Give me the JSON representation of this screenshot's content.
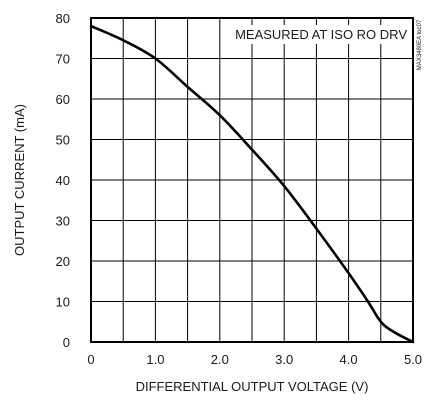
{
  "chart_data": {
    "type": "line",
    "title": "",
    "xlabel": "DIFFERENTIAL OUTPUT VOLTAGE (V)",
    "ylabel": "OUTPUT CURRENT (mA)",
    "annotation": "MEASURED AT ISO RO DRV",
    "side_note": "MAX3480EA toc07",
    "xlim": [
      0,
      5.0
    ],
    "ylim": [
      0,
      80
    ],
    "x_ticks": [
      0,
      1.0,
      2.0,
      3.0,
      4.0,
      5.0
    ],
    "x_tick_labels": [
      "0",
      "1.0",
      "2.0",
      "3.0",
      "4.0",
      "5.0"
    ],
    "y_ticks": [
      0,
      10,
      20,
      30,
      40,
      50,
      60,
      70,
      80
    ],
    "y_tick_labels": [
      "0",
      "10",
      "20",
      "30",
      "40",
      "50",
      "60",
      "70",
      "80"
    ],
    "grid": true,
    "series": [
      {
        "name": "",
        "x": [
          0,
          0.5,
          1.0,
          1.5,
          2.0,
          2.5,
          3.0,
          3.5,
          4.0,
          4.3,
          4.5,
          4.7,
          5.0
        ],
        "y": [
          78,
          74.5,
          70,
          63,
          56,
          47.5,
          38.5,
          28,
          17,
          10,
          5,
          2.5,
          0
        ]
      }
    ],
    "line_color": "#000000"
  }
}
